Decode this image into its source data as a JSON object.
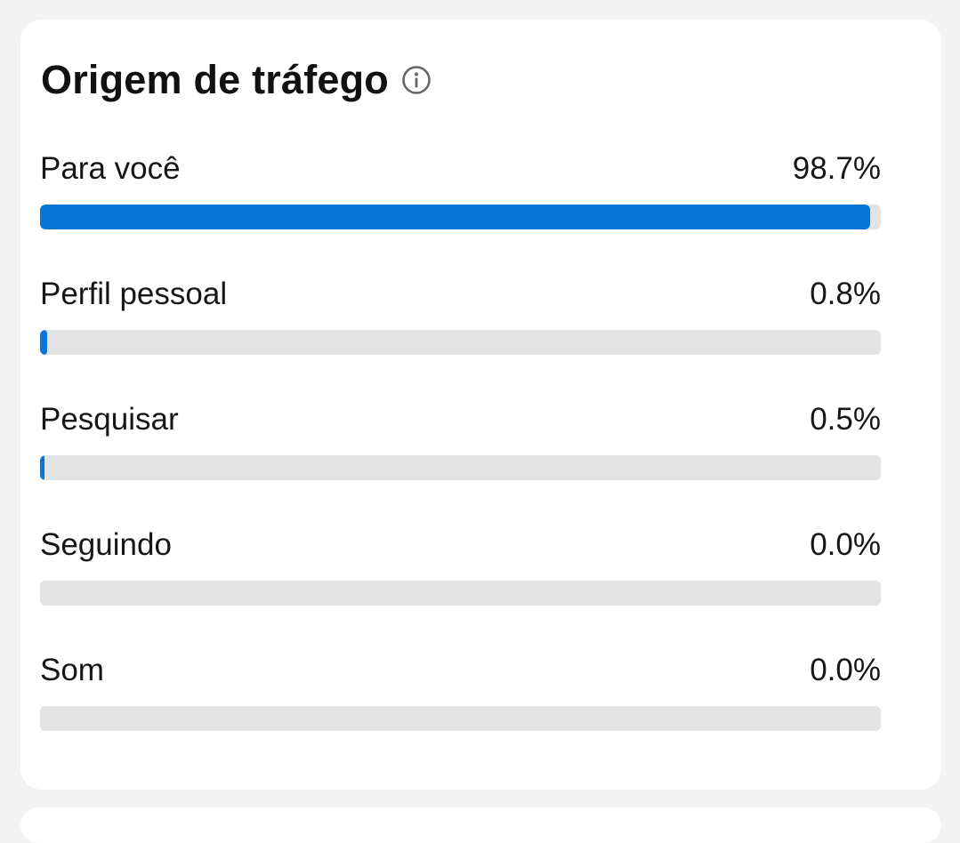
{
  "card": {
    "title": "Origem de tráfego",
    "info_icon": "info-icon"
  },
  "colors": {
    "accent": "#0a74d9",
    "track": "#e3e3e3",
    "card_bg": "#ffffff",
    "page_bg": "#f3f3f3"
  },
  "sources": [
    {
      "label": "Para você",
      "value_text": "98.7%",
      "percent": 98.7
    },
    {
      "label": "Perfil pessoal",
      "value_text": "0.8%",
      "percent": 0.8
    },
    {
      "label": "Pesquisar",
      "value_text": "0.5%",
      "percent": 0.5
    },
    {
      "label": "Seguindo",
      "value_text": "0.0%",
      "percent": 0.0
    },
    {
      "label": "Som",
      "value_text": "0.0%",
      "percent": 0.0
    }
  ]
}
